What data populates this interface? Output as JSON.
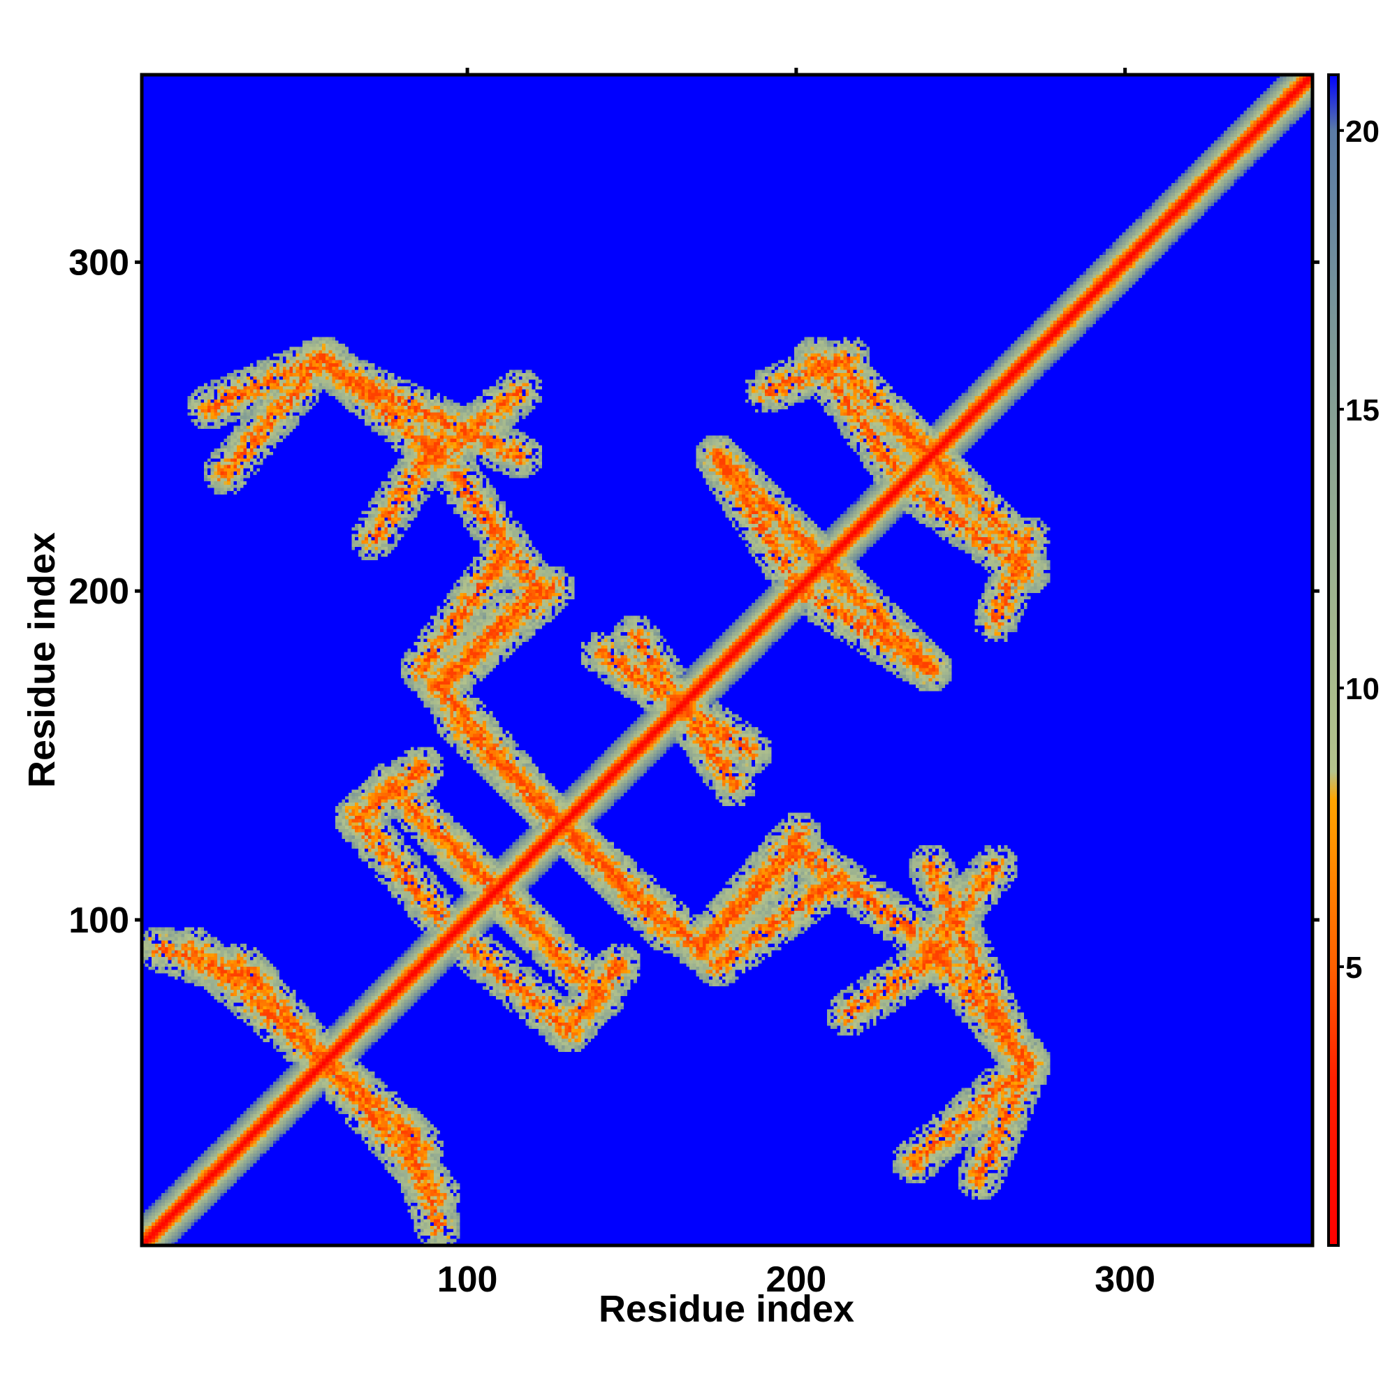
{
  "chart_data": {
    "type": "heatmap",
    "title": "",
    "xlabel": "Residue index",
    "ylabel": "Residue index",
    "n_residues": 357,
    "xlim": [
      1,
      357
    ],
    "ylim": [
      1,
      357
    ],
    "x_ticks": [
      100,
      200,
      300
    ],
    "y_ticks": [
      100,
      200,
      300
    ],
    "colorbar": {
      "range": [
        0,
        21
      ],
      "ticks": [
        5,
        10,
        15,
        20
      ],
      "stops": [
        {
          "value": 0,
          "color": "#ff0000"
        },
        {
          "value": 3,
          "color": "#ff2000"
        },
        {
          "value": 5,
          "color": "#ff6000"
        },
        {
          "value": 8,
          "color": "#ffa500"
        },
        {
          "value": 8.5,
          "color": "#b4c38c"
        },
        {
          "value": 11,
          "color": "#a3b78e"
        },
        {
          "value": 16,
          "color": "#7f9a96"
        },
        {
          "value": 20,
          "color": "#5b7ba6"
        },
        {
          "value": 21,
          "color": "#0000ff"
        }
      ]
    },
    "background_value": 21,
    "background_color": "#0000ff",
    "diagonal": {
      "from": 1,
      "to": 357,
      "core_value": 0,
      "band_width": 9
    },
    "contact_bands": [
      {
        "orientation": "anti",
        "x1": 20,
        "y1": 255,
        "x2": 55,
        "y2": 270
      },
      {
        "orientation": "anti",
        "x1": 55,
        "y1": 270,
        "x2": 90,
        "y2": 240
      },
      {
        "orientation": "anti",
        "x1": 90,
        "y1": 240,
        "x2": 115,
        "y2": 260
      },
      {
        "orientation": "anti",
        "x1": 5,
        "y1": 90,
        "x2": 35,
        "y2": 80
      },
      {
        "orientation": "anti",
        "x1": 30,
        "y1": 85,
        "x2": 90,
        "y2": 15
      },
      {
        "orientation": "anti",
        "x1": 75,
        "y1": 140,
        "x2": 120,
        "y2": 95
      },
      {
        "orientation": "anti",
        "x1": 95,
        "y1": 160,
        "x2": 135,
        "y2": 120
      },
      {
        "orientation": "anti",
        "x1": 110,
        "y1": 210,
        "x2": 85,
        "y2": 175
      },
      {
        "orientation": "anti",
        "x1": 90,
        "y1": 170,
        "x2": 125,
        "y2": 200
      },
      {
        "orientation": "anti",
        "x1": 100,
        "y1": 90,
        "x2": 130,
        "y2": 65
      },
      {
        "orientation": "anti",
        "x1": 130,
        "y1": 65,
        "x2": 145,
        "y2": 85
      },
      {
        "orientation": "anti",
        "x1": 135,
        "y1": 120,
        "x2": 170,
        "y2": 90
      },
      {
        "orientation": "anti",
        "x1": 140,
        "y1": 180,
        "x2": 185,
        "y2": 150
      },
      {
        "orientation": "anti",
        "x1": 170,
        "y1": 90,
        "x2": 200,
        "y2": 120
      },
      {
        "orientation": "anti",
        "x1": 200,
        "y1": 120,
        "x2": 235,
        "y2": 95
      },
      {
        "orientation": "anti",
        "x1": 175,
        "y1": 240,
        "x2": 215,
        "y2": 200
      },
      {
        "orientation": "anti",
        "x1": 190,
        "y1": 260,
        "x2": 215,
        "y2": 270
      },
      {
        "orientation": "anti",
        "x1": 215,
        "y1": 265,
        "x2": 250,
        "y2": 230
      },
      {
        "orientation": "anti",
        "x1": 200,
        "y1": 200,
        "x2": 240,
        "y2": 175
      },
      {
        "orientation": "anti",
        "x1": 235,
        "y1": 230,
        "x2": 270,
        "y2": 205
      },
      {
        "orientation": "anti",
        "x1": 215,
        "y1": 70,
        "x2": 245,
        "y2": 90
      },
      {
        "orientation": "anti",
        "x1": 240,
        "y1": 115,
        "x2": 265,
        "y2": 60
      },
      {
        "orientation": "anti",
        "x1": 235,
        "y1": 25,
        "x2": 270,
        "y2": 55
      }
    ]
  }
}
